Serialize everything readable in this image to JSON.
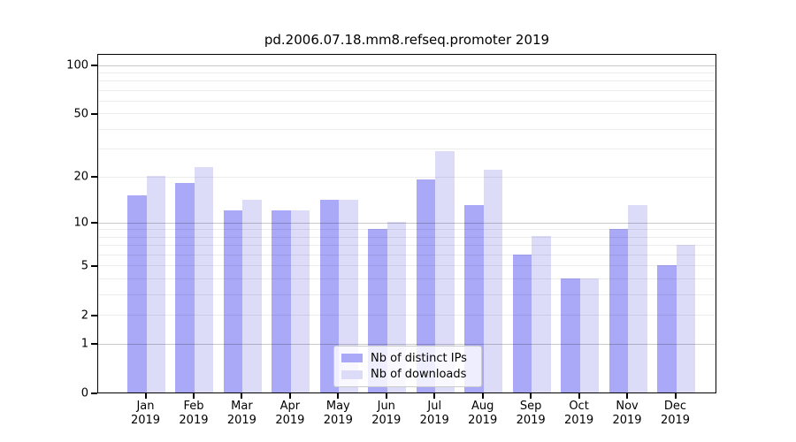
{
  "title": "pd.2006.07.18.mm8.refseq.promoter 2019",
  "legend": {
    "items": [
      {
        "label": "Nb of distinct IPs",
        "color": "#a9a9f7"
      },
      {
        "label": "Nb of downloads",
        "color": "#dcdcf9"
      }
    ]
  },
  "y_axis": {
    "tick_labels": [
      "100",
      "50",
      "20",
      "10",
      "5",
      "2",
      "1",
      "0"
    ],
    "scale": "log10(value+1)"
  },
  "chart_data": {
    "type": "bar",
    "title": "pd.2006.07.18.mm8.refseq.promoter 2019",
    "categories": [
      "Jan 2019",
      "Feb 2019",
      "Mar 2019",
      "Apr 2019",
      "May 2019",
      "Jun 2019",
      "Jul 2019",
      "Aug 2019",
      "Sep 2019",
      "Oct 2019",
      "Nov 2019",
      "Dec 2019"
    ],
    "series": [
      {
        "name": "Nb of distinct IPs",
        "color": "#a9a9f7",
        "values": [
          15,
          18,
          12,
          12,
          14,
          9,
          19,
          13,
          6,
          4,
          9,
          5
        ]
      },
      {
        "name": "Nb of downloads",
        "color": "#dcdcf9",
        "values": [
          20,
          23,
          14,
          12,
          14,
          10,
          29,
          22,
          8,
          4,
          13,
          7
        ]
      }
    ],
    "yscale": "log10(value+1)",
    "y_ticks": [
      0,
      1,
      2,
      5,
      10,
      20,
      50,
      100
    ],
    "ylim": [
      0,
      120
    ],
    "grid": true,
    "legend_position": "lower center"
  }
}
